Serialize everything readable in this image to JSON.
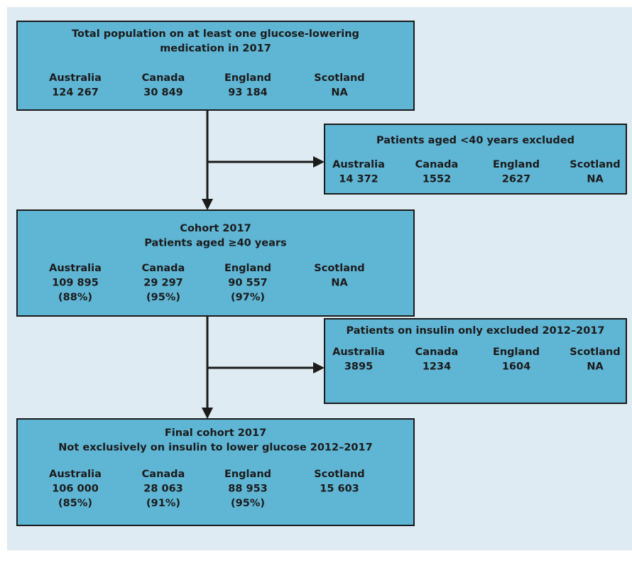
{
  "boxes": [
    {
      "title_lines": [
        "Total population on at least one glucose-lowering",
        "medication in 2017"
      ],
      "columns": [
        {
          "name": "Australia",
          "lines": [
            "124 267"
          ]
        },
        {
          "name": "Canada",
          "lines": [
            "30 849"
          ]
        },
        {
          "name": "England",
          "lines": [
            "93 184"
          ]
        },
        {
          "name": "Scotland",
          "lines": [
            "NA"
          ]
        }
      ]
    },
    {
      "title_lines": [
        "Patients aged <40 years excluded"
      ],
      "columns": [
        {
          "name": "Australia",
          "lines": [
            "14 372"
          ]
        },
        {
          "name": "Canada",
          "lines": [
            "1552"
          ]
        },
        {
          "name": "England",
          "lines": [
            "2627"
          ]
        },
        {
          "name": "Scotland",
          "lines": [
            "NA"
          ]
        }
      ]
    },
    {
      "title_lines": [
        "Cohort 2017",
        "Patients aged ≥40 years"
      ],
      "columns": [
        {
          "name": "Australia",
          "lines": [
            "109 895",
            "(88%)"
          ]
        },
        {
          "name": "Canada",
          "lines": [
            "29 297",
            "(95%)"
          ]
        },
        {
          "name": "England",
          "lines": [
            "90 557",
            "(97%)"
          ]
        },
        {
          "name": "Scotland",
          "lines": [
            "NA"
          ]
        }
      ]
    },
    {
      "title_lines": [
        "Patients on insulin only excluded 2012–2017"
      ],
      "columns": [
        {
          "name": "Australia",
          "lines": [
            "3895"
          ]
        },
        {
          "name": "Canada",
          "lines": [
            "1234"
          ]
        },
        {
          "name": "England",
          "lines": [
            "1604"
          ]
        },
        {
          "name": "Scotland",
          "lines": [
            "NA"
          ]
        }
      ]
    },
    {
      "title_lines": [
        "Final cohort 2017",
        "Not exclusively on insulin to lower glucose 2012–2017"
      ],
      "columns": [
        {
          "name": "Australia",
          "lines": [
            "106 000",
            "(85%)"
          ]
        },
        {
          "name": "Canada",
          "lines": [
            "28 063",
            "(91%)"
          ]
        },
        {
          "name": "England",
          "lines": [
            "88 953",
            "(95%)"
          ]
        },
        {
          "name": "Scotland",
          "lines": [
            "15 603"
          ]
        }
      ]
    }
  ]
}
